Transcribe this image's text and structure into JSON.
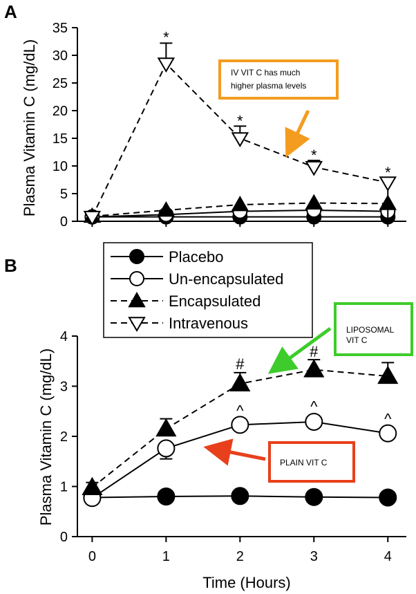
{
  "panels": {
    "A": {
      "letter": "A"
    },
    "B": {
      "letter": "B"
    }
  },
  "legend": [
    {
      "label": "Placebo",
      "marker": "filled-circle",
      "dash": "solid"
    },
    {
      "label": "Un-encapsulated",
      "marker": "open-circle",
      "dash": "solid"
    },
    {
      "label": "Encapsulated",
      "marker": "filled-triangle",
      "dash": "dashed"
    },
    {
      "label": "Intravenous",
      "marker": "open-inverted-triangle",
      "dash": "dashed"
    }
  ],
  "annotations": {
    "iv_note": {
      "line1": "IV VIT C has much",
      "line2": "higher plasma levels",
      "border": "#f39c1f",
      "arrow": "#f39c1f"
    },
    "lipo_note": {
      "line1": "LIPOSOMAL",
      "line2": "VIT C",
      "border": "#3ecc2c",
      "arrow": "#3ecc2c"
    },
    "plain_note": {
      "line1": "PLAIN VIT C",
      "border": "#e8401c",
      "arrow": "#e8401c"
    }
  },
  "chart_data": [
    {
      "panel": "A",
      "type": "line",
      "x": [
        0,
        1,
        2,
        3,
        4
      ],
      "xlim": [
        -0.2,
        4.25
      ],
      "ylim": [
        0,
        35
      ],
      "yticks": [
        0,
        5,
        10,
        15,
        20,
        25,
        30,
        35
      ],
      "xlabel": "",
      "ylabel": "Plasma Vitamin C (mg/dL)",
      "series": [
        {
          "name": "Placebo",
          "values": [
            0.8,
            0.8,
            0.8,
            0.8,
            0.8
          ]
        },
        {
          "name": "Un-encapsulated",
          "values": [
            0.8,
            1.2,
            1.8,
            2.0,
            1.8
          ]
        },
        {
          "name": "Encapsulated",
          "values": [
            0.9,
            2.0,
            3.0,
            3.3,
            3.2
          ]
        },
        {
          "name": "Intravenous",
          "values": [
            0.8,
            28.5,
            15.0,
            9.8,
            7.0
          ],
          "error_upper": [
            0.0,
            32.2,
            17.2,
            11.0,
            0.0
          ]
        }
      ],
      "markers": [
        {
          "label": "*",
          "x": 1,
          "y": 33.3
        },
        {
          "label": "*",
          "x": 2,
          "y": 18.2
        },
        {
          "label": "*",
          "x": 3,
          "y": 12.0
        },
        {
          "label": "*",
          "x": 4,
          "y": 8.9
        }
      ]
    },
    {
      "panel": "B",
      "type": "line",
      "x": [
        0,
        1,
        2,
        3,
        4
      ],
      "xlim": [
        -0.2,
        4.25
      ],
      "ylim": [
        0,
        4
      ],
      "yticks": [
        0,
        1,
        2,
        3,
        4
      ],
      "xticks": [
        0,
        1,
        2,
        3,
        4
      ],
      "xlabel": "Time (Hours)",
      "ylabel": "Plasma Vitamin C (mg/dL)",
      "series": [
        {
          "name": "Placebo",
          "values": [
            0.78,
            0.8,
            0.81,
            0.79,
            0.78
          ]
        },
        {
          "name": "Un-encapsulated",
          "values": [
            0.77,
            1.76,
            2.23,
            2.29,
            2.06
          ],
          "error_lower": [
            0.77,
            1.55,
            2.23,
            2.29,
            2.06
          ]
        },
        {
          "name": "Encapsulated",
          "values": [
            0.98,
            2.15,
            3.05,
            3.33,
            3.2
          ],
          "error_upper": [
            1.08,
            2.35,
            3.27,
            3.53,
            3.47
          ]
        }
      ],
      "markers": [
        {
          "label": "#",
          "x": 2,
          "y": 3.45
        },
        {
          "label": "#",
          "x": 3,
          "y": 3.7
        },
        {
          "label": "^",
          "x": 2,
          "y": 2.52
        },
        {
          "label": "^",
          "x": 3,
          "y": 2.6
        },
        {
          "label": "^",
          "x": 4,
          "y": 2.35
        }
      ]
    }
  ]
}
